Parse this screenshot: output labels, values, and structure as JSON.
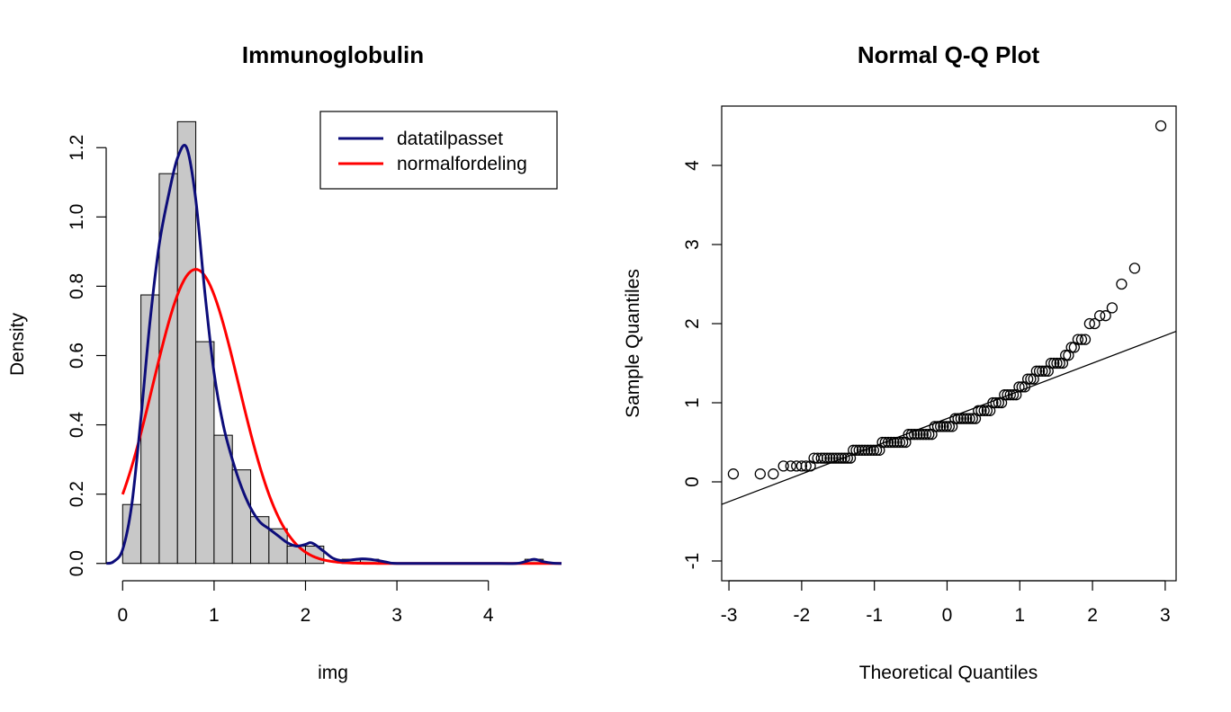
{
  "colors": {
    "bar_fill": "#c8c8c8",
    "datatilpasset": "#0d0d7a",
    "normalfordeling": "#ff0000",
    "axis": "#000000"
  },
  "chart_data": [
    {
      "type": "histogram",
      "title": "Immunoglobulin",
      "xlabel": "img",
      "ylabel": "Density",
      "xlim": [
        -0.18,
        4.8
      ],
      "ylim": [
        -0.05,
        1.32
      ],
      "xticks": [
        0,
        1,
        2,
        3,
        4
      ],
      "yticks": [
        0.0,
        0.2,
        0.4,
        0.6,
        0.8,
        1.0,
        1.2
      ],
      "bin_width": 0.2,
      "bins": [
        {
          "x0": 0.0,
          "x1": 0.2,
          "density": 0.17
        },
        {
          "x0": 0.2,
          "x1": 0.4,
          "density": 0.775
        },
        {
          "x0": 0.4,
          "x1": 0.6,
          "density": 1.125
        },
        {
          "x0": 0.6,
          "x1": 0.8,
          "density": 1.275
        },
        {
          "x0": 0.8,
          "x1": 1.0,
          "density": 0.64
        },
        {
          "x0": 1.0,
          "x1": 1.2,
          "density": 0.37
        },
        {
          "x0": 1.2,
          "x1": 1.4,
          "density": 0.27
        },
        {
          "x0": 1.4,
          "x1": 1.6,
          "density": 0.135
        },
        {
          "x0": 1.6,
          "x1": 1.8,
          "density": 0.1
        },
        {
          "x0": 1.8,
          "x1": 2.0,
          "density": 0.05
        },
        {
          "x0": 2.0,
          "x1": 2.2,
          "density": 0.05
        },
        {
          "x0": 2.2,
          "x1": 2.4,
          "density": 0.0
        },
        {
          "x0": 2.4,
          "x1": 2.6,
          "density": 0.012
        },
        {
          "x0": 2.6,
          "x1": 2.8,
          "density": 0.012
        },
        {
          "x0": 2.8,
          "x1": 3.0,
          "density": 0.0
        },
        {
          "x0": 3.0,
          "x1": 3.2,
          "density": 0.0
        },
        {
          "x0": 3.2,
          "x1": 3.4,
          "density": 0.0
        },
        {
          "x0": 3.4,
          "x1": 3.6,
          "density": 0.0
        },
        {
          "x0": 3.6,
          "x1": 3.8,
          "density": 0.0
        },
        {
          "x0": 3.8,
          "x1": 4.0,
          "density": 0.0
        },
        {
          "x0": 4.0,
          "x1": 4.2,
          "density": 0.0
        },
        {
          "x0": 4.2,
          "x1": 4.4,
          "density": 0.0
        },
        {
          "x0": 4.4,
          "x1": 4.6,
          "density": 0.012
        }
      ],
      "series": [
        {
          "name": "datatilpasset",
          "color": "#0d0d7a",
          "x": [
            -0.18,
            -0.1,
            0.0,
            0.1,
            0.2,
            0.3,
            0.4,
            0.5,
            0.6,
            0.7,
            0.8,
            0.9,
            1.0,
            1.1,
            1.2,
            1.3,
            1.4,
            1.5,
            1.6,
            1.7,
            1.8,
            1.9,
            2.0,
            2.05,
            2.1,
            2.2,
            2.3,
            2.4,
            2.5,
            2.6,
            2.7,
            2.8,
            2.9,
            3.0,
            3.5,
            4.0,
            4.3,
            4.4,
            4.5,
            4.6,
            4.7,
            4.8
          ],
          "y": [
            0.0,
            0.005,
            0.04,
            0.17,
            0.42,
            0.7,
            0.92,
            1.06,
            1.17,
            1.2,
            1.05,
            0.78,
            0.55,
            0.4,
            0.3,
            0.22,
            0.16,
            0.12,
            0.1,
            0.08,
            0.06,
            0.05,
            0.055,
            0.06,
            0.055,
            0.035,
            0.015,
            0.008,
            0.01,
            0.013,
            0.012,
            0.008,
            0.003,
            0.0,
            0.0,
            0.0,
            0.0,
            0.005,
            0.012,
            0.005,
            0.001,
            0.0
          ]
        },
        {
          "name": "normalfordeling",
          "color": "#ff0000",
          "mean": 0.8,
          "sd": 0.47,
          "x_from": 0.0,
          "x_to": 4.8
        }
      ],
      "legend": {
        "position": "top-right",
        "entries": [
          "datatilpasset",
          "normalfordeling"
        ]
      }
    },
    {
      "type": "scatter",
      "title": "Normal Q-Q Plot",
      "xlabel": "Theoretical Quantiles",
      "ylabel": "Sample Quantiles",
      "xlim": [
        -3.1,
        3.15
      ],
      "ylim": [
        -1.25,
        4.75
      ],
      "xticks": [
        -3,
        -2,
        -1,
        0,
        1,
        2,
        3
      ],
      "yticks": [
        -1,
        0,
        1,
        2,
        3,
        4
      ],
      "points_x": [
        -2.94,
        -2.57,
        -2.39,
        -2.25,
        -2.15,
        -2.07,
        -2.0,
        -1.94,
        -1.88,
        -1.83,
        -1.78,
        -1.73,
        -1.69,
        -1.65,
        -1.61,
        -1.57,
        -1.53,
        -1.49,
        -1.45,
        -1.41,
        -1.37,
        -1.33,
        -1.29,
        -1.25,
        -1.21,
        -1.17,
        -1.13,
        -1.09,
        -1.05,
        -1.01,
        -0.97,
        -0.93,
        -0.89,
        -0.85,
        -0.81,
        -0.77,
        -0.73,
        -0.69,
        -0.65,
        -0.61,
        -0.57,
        -0.53,
        -0.49,
        -0.45,
        -0.41,
        -0.37,
        -0.33,
        -0.29,
        -0.25,
        -0.21,
        -0.17,
        -0.13,
        -0.09,
        -0.05,
        -0.01,
        0.03,
        0.07,
        0.11,
        0.15,
        0.19,
        0.23,
        0.27,
        0.31,
        0.35,
        0.39,
        0.43,
        0.47,
        0.51,
        0.55,
        0.59,
        0.63,
        0.67,
        0.71,
        0.75,
        0.79,
        0.83,
        0.87,
        0.91,
        0.95,
        0.99,
        1.03,
        1.07,
        1.11,
        1.15,
        1.19,
        1.23,
        1.27,
        1.31,
        1.35,
        1.39,
        1.43,
        1.47,
        1.51,
        1.55,
        1.59,
        1.63,
        1.67,
        1.71,
        1.75,
        1.8,
        1.85,
        1.9,
        1.96,
        2.03,
        2.1,
        2.18,
        2.27,
        2.4,
        2.58,
        2.94
      ],
      "points_y": [
        0.1,
        0.1,
        0.1,
        0.2,
        0.2,
        0.2,
        0.2,
        0.2,
        0.2,
        0.3,
        0.3,
        0.3,
        0.3,
        0.3,
        0.3,
        0.3,
        0.3,
        0.3,
        0.3,
        0.3,
        0.3,
        0.3,
        0.4,
        0.4,
        0.4,
        0.4,
        0.4,
        0.4,
        0.4,
        0.4,
        0.4,
        0.4,
        0.5,
        0.5,
        0.5,
        0.5,
        0.5,
        0.5,
        0.5,
        0.5,
        0.5,
        0.6,
        0.6,
        0.6,
        0.6,
        0.6,
        0.6,
        0.6,
        0.6,
        0.6,
        0.7,
        0.7,
        0.7,
        0.7,
        0.7,
        0.7,
        0.7,
        0.8,
        0.8,
        0.8,
        0.8,
        0.8,
        0.8,
        0.8,
        0.8,
        0.9,
        0.9,
        0.9,
        0.9,
        0.9,
        1.0,
        1.0,
        1.0,
        1.0,
        1.1,
        1.1,
        1.1,
        1.1,
        1.1,
        1.2,
        1.2,
        1.2,
        1.3,
        1.3,
        1.3,
        1.4,
        1.4,
        1.4,
        1.4,
        1.4,
        1.5,
        1.5,
        1.5,
        1.5,
        1.5,
        1.6,
        1.6,
        1.7,
        1.7,
        1.8,
        1.8,
        1.8,
        2.0,
        2.0,
        2.1,
        2.1,
        2.2,
        2.5,
        2.7,
        4.5
      ],
      "reference_line": {
        "intercept": 0.8,
        "slope": 0.35
      }
    }
  ]
}
